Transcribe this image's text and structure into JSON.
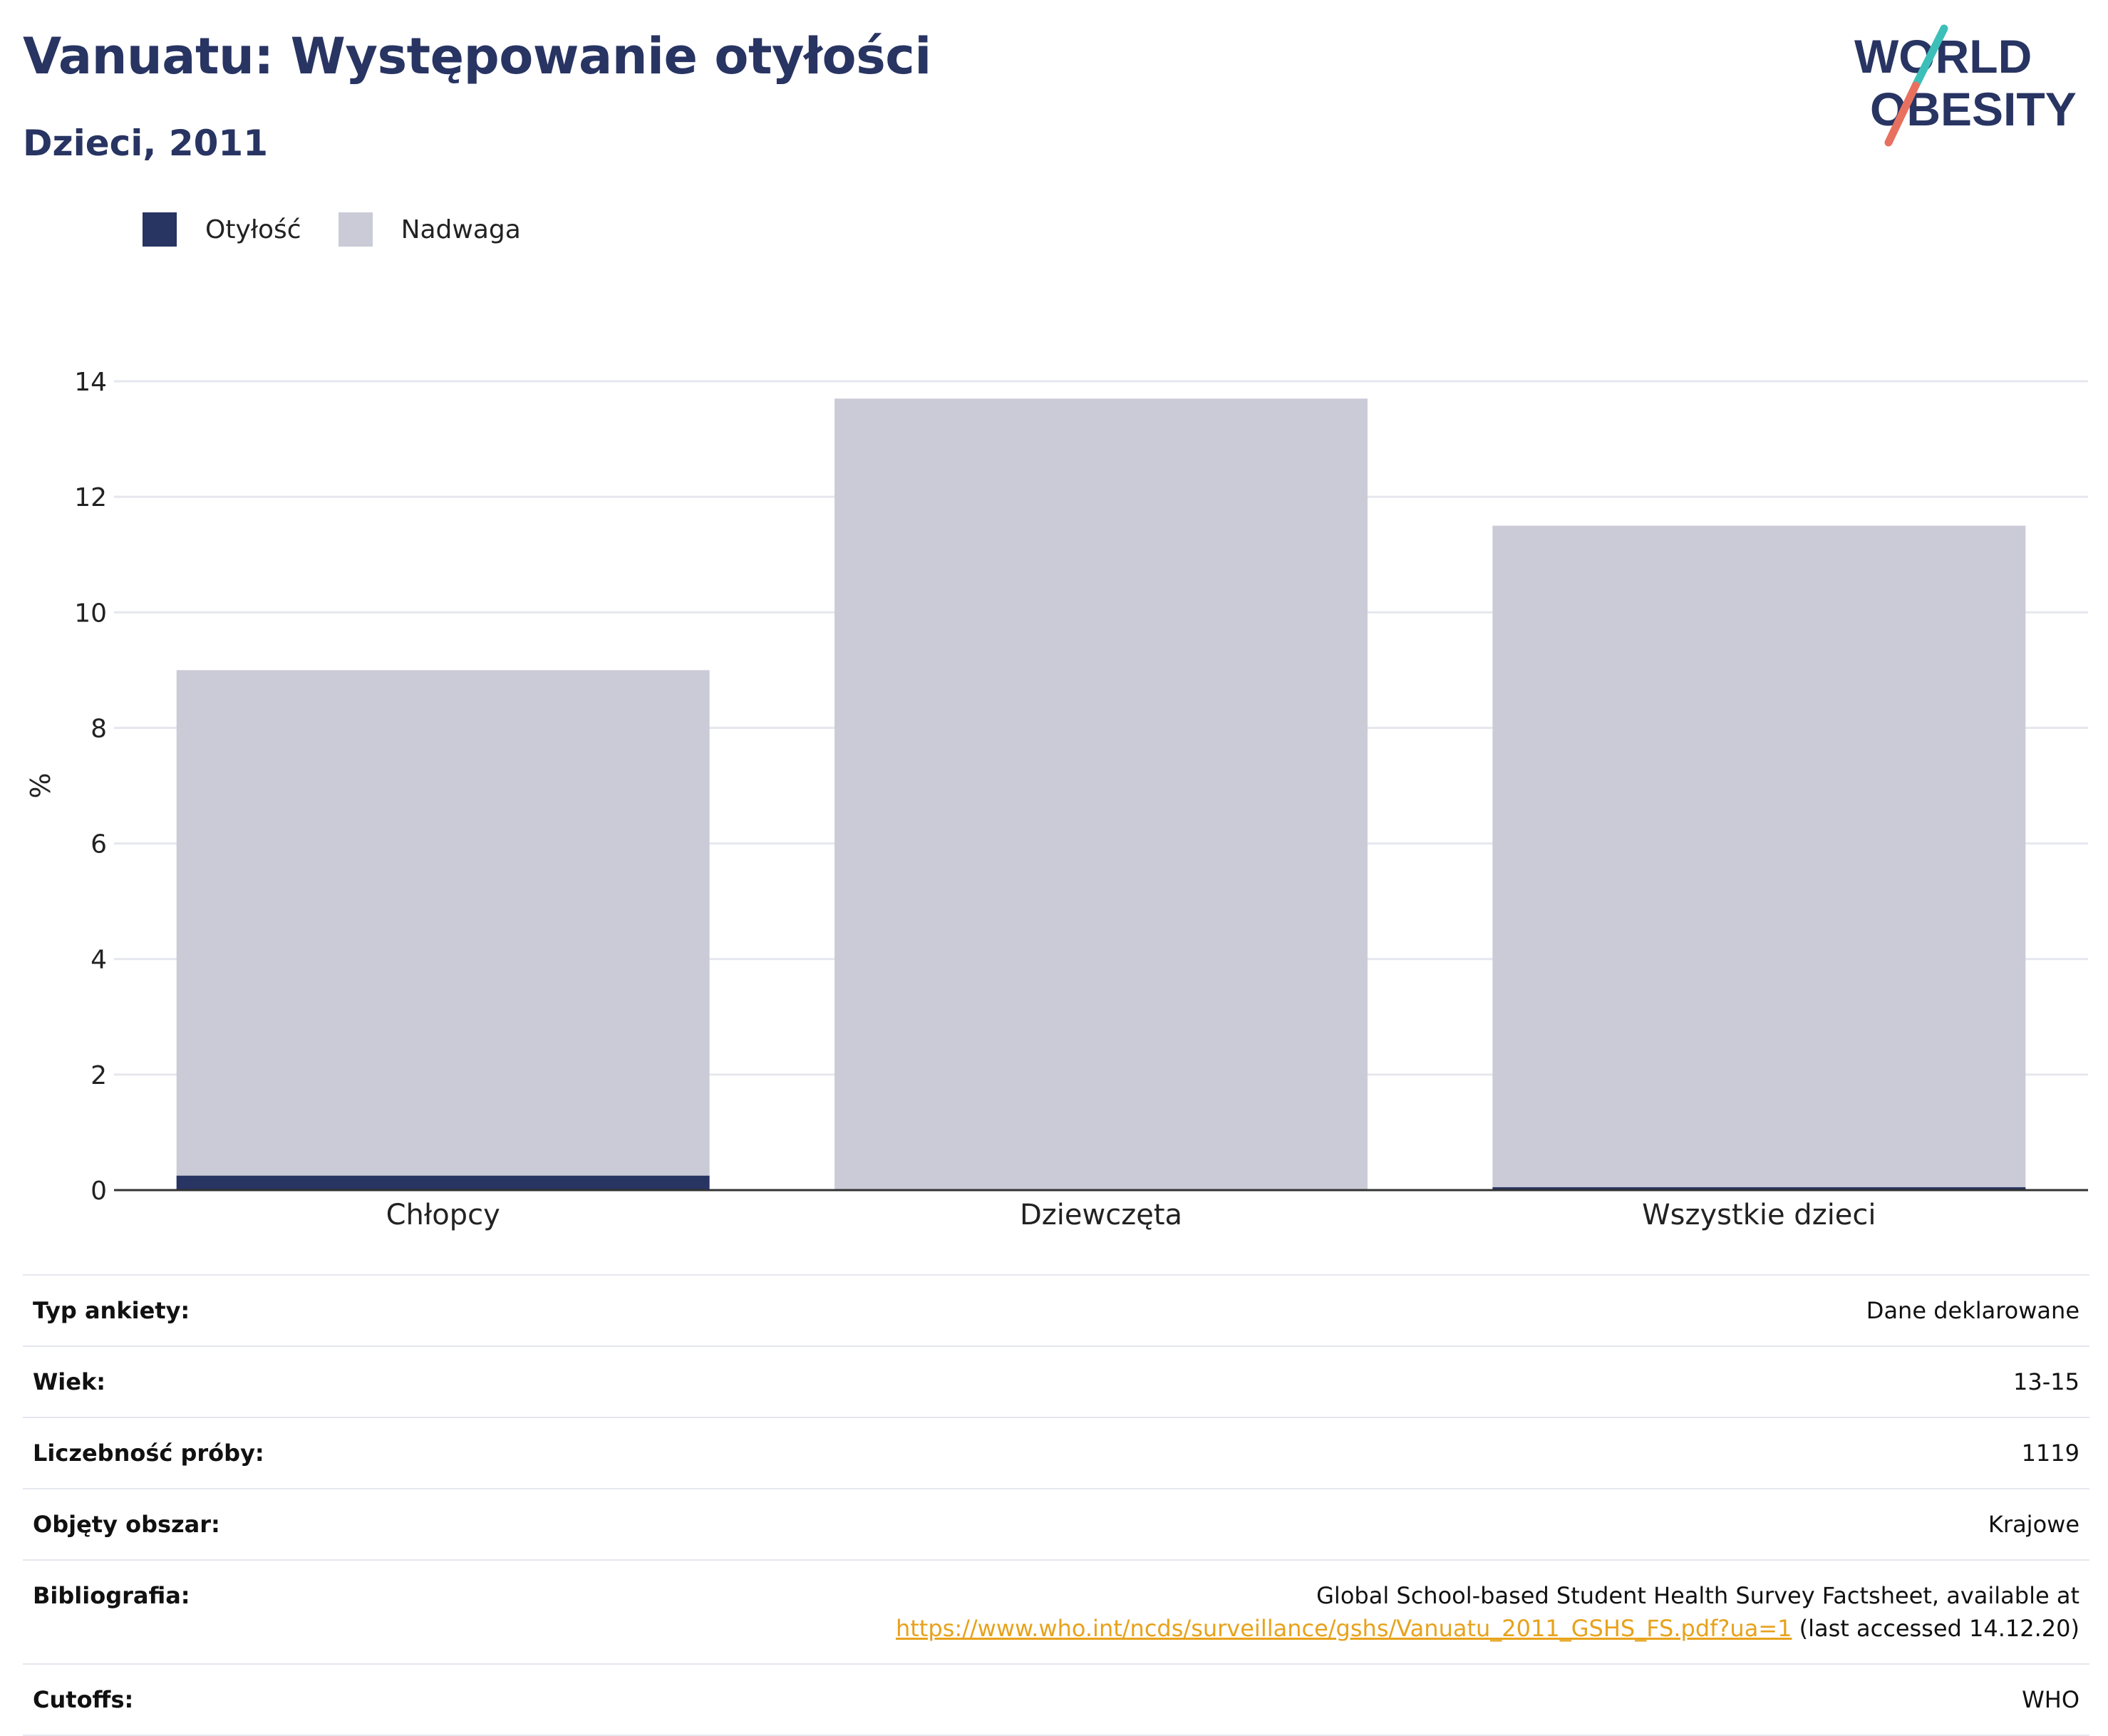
{
  "header": {
    "title": "Vanuatu: Występowanie otyłości",
    "subtitle": "Dzieci, 2011"
  },
  "logo": {
    "line1": "WORLD",
    "line2": "OBESITY",
    "colors": {
      "text": "#283462",
      "slash_top": "#3cbfb8",
      "slash_bottom": "#e8705f"
    }
  },
  "legend": {
    "items": [
      {
        "label": "Otyłość",
        "color": "#283462"
      },
      {
        "label": "Nadwaga",
        "color": "#cacccc"
      }
    ]
  },
  "chart_data": {
    "type": "bar",
    "mode": "overlay",
    "categories": [
      "Chłopcy",
      "Dziewczęta",
      "Wszystkie dzieci"
    ],
    "series": [
      {
        "name": "Nadwaga",
        "values": [
          9.0,
          13.7,
          11.5
        ],
        "color": "#cacbd7"
      },
      {
        "name": "Otyłość",
        "values": [
          0.25,
          0.0,
          0.05
        ],
        "color": "#283462"
      }
    ],
    "xlabel": "",
    "ylabel": "%",
    "ylim": [
      0,
      14
    ],
    "yticks": [
      0,
      2,
      4,
      6,
      8,
      10,
      12,
      14
    ],
    "grid": true,
    "legend_position": "top-left"
  },
  "info": {
    "rows": [
      {
        "key": "Typ ankiety:",
        "value": "Dane deklarowane"
      },
      {
        "key": "Wiek:",
        "value": "13-15"
      },
      {
        "key": "Liczebność próby:",
        "value": "1119"
      },
      {
        "key": "Objęty obszar:",
        "value": "Krajowe"
      }
    ],
    "bibliography": {
      "key": "Bibliografia:",
      "text": "Global School-based Student Health Survey Factsheet, available at",
      "link": "https://www.who.int/ncds/surveillance/gshs/Vanuatu_2011_GSHS_FS.pdf?ua=1",
      "suffix": " (last accessed 14.12.20)"
    },
    "cutoffs": {
      "key": "Cutoffs:",
      "value": "WHO"
    }
  }
}
